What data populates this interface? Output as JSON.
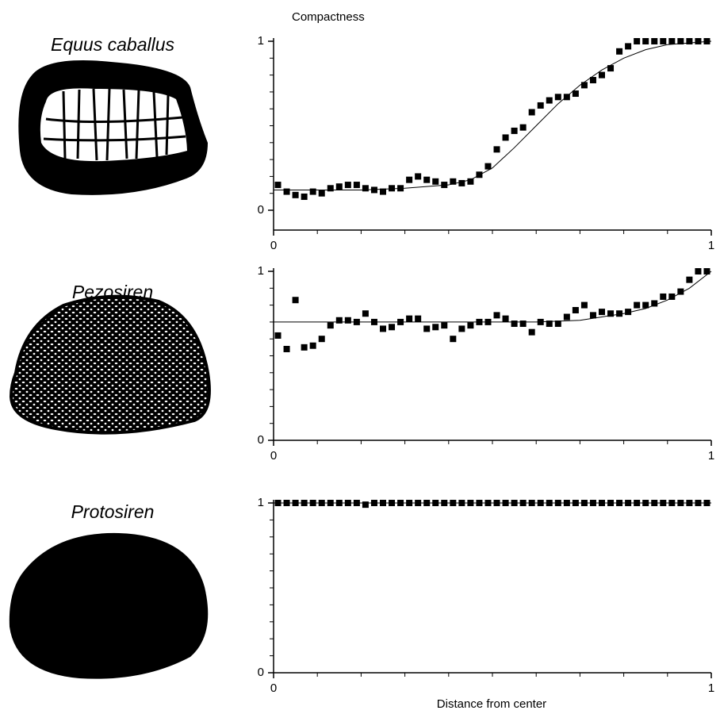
{
  "chart_data": [
    {
      "type": "scatter",
      "title": "Equus caballus",
      "ylabel": "Compactness",
      "x": [
        0.01,
        0.03,
        0.05,
        0.07,
        0.09,
        0.11,
        0.13,
        0.15,
        0.17,
        0.19,
        0.21,
        0.23,
        0.25,
        0.27,
        0.29,
        0.31,
        0.33,
        0.35,
        0.37,
        0.39,
        0.41,
        0.43,
        0.45,
        0.47,
        0.49,
        0.51,
        0.53,
        0.55,
        0.57,
        0.59,
        0.61,
        0.63,
        0.65,
        0.67,
        0.69,
        0.71,
        0.73,
        0.75,
        0.77,
        0.79,
        0.81,
        0.83,
        0.85,
        0.87,
        0.89,
        0.91,
        0.93,
        0.95,
        0.97,
        0.99
      ],
      "values": [
        0.15,
        0.11,
        0.09,
        0.08,
        0.11,
        0.1,
        0.13,
        0.14,
        0.15,
        0.15,
        0.13,
        0.12,
        0.11,
        0.13,
        0.13,
        0.18,
        0.2,
        0.18,
        0.17,
        0.15,
        0.17,
        0.16,
        0.17,
        0.21,
        0.26,
        0.36,
        0.43,
        0.47,
        0.49,
        0.58,
        0.62,
        0.65,
        0.67,
        0.67,
        0.69,
        0.74,
        0.77,
        0.8,
        0.84,
        0.94,
        0.97,
        1,
        1,
        1,
        1,
        1,
        1,
        1,
        1,
        1
      ],
      "curve": {
        "x": [
          0,
          0.1,
          0.2,
          0.3,
          0.35,
          0.4,
          0.45,
          0.5,
          0.55,
          0.6,
          0.65,
          0.7,
          0.75,
          0.8,
          0.85,
          0.9,
          0.95,
          1
        ],
        "values": [
          0.12,
          0.12,
          0.12,
          0.13,
          0.14,
          0.15,
          0.18,
          0.25,
          0.37,
          0.5,
          0.63,
          0.74,
          0.83,
          0.9,
          0.95,
          0.98,
          0.99,
          1
        ]
      },
      "xlim": [
        0,
        1
      ],
      "ylim": [
        0,
        1
      ],
      "xticks": [
        0,
        1
      ],
      "yticks": [
        0,
        1
      ],
      "color": "#000000"
    },
    {
      "type": "scatter",
      "title": "Pezosiren",
      "x": [
        0.01,
        0.03,
        0.05,
        0.07,
        0.09,
        0.11,
        0.13,
        0.15,
        0.17,
        0.19,
        0.21,
        0.23,
        0.25,
        0.27,
        0.29,
        0.31,
        0.33,
        0.35,
        0.37,
        0.39,
        0.41,
        0.43,
        0.45,
        0.47,
        0.49,
        0.51,
        0.53,
        0.55,
        0.57,
        0.59,
        0.61,
        0.63,
        0.65,
        0.67,
        0.69,
        0.71,
        0.73,
        0.75,
        0.77,
        0.79,
        0.81,
        0.83,
        0.85,
        0.87,
        0.89,
        0.91,
        0.93,
        0.95,
        0.97,
        0.99
      ],
      "values": [
        0.62,
        0.54,
        0.83,
        0.55,
        0.56,
        0.6,
        0.68,
        0.71,
        0.71,
        0.7,
        0.75,
        0.7,
        0.66,
        0.67,
        0.7,
        0.72,
        0.72,
        0.66,
        0.67,
        0.68,
        0.6,
        0.66,
        0.68,
        0.7,
        0.7,
        0.74,
        0.72,
        0.69,
        0.69,
        0.64,
        0.7,
        0.69,
        0.69,
        0.73,
        0.77,
        0.8,
        0.74,
        0.76,
        0.75,
        0.75,
        0.76,
        0.8,
        0.8,
        0.81,
        0.85,
        0.85,
        0.88,
        0.95,
        1,
        1
      ],
      "curve": {
        "x": [
          0,
          0.5,
          0.6,
          0.7,
          0.75,
          0.8,
          0.85,
          0.9,
          0.95,
          1
        ],
        "values": [
          0.7,
          0.7,
          0.7,
          0.71,
          0.73,
          0.75,
          0.78,
          0.83,
          0.9,
          1
        ]
      },
      "xlim": [
        0,
        1
      ],
      "ylim": [
        0,
        1
      ],
      "xticks": [
        0,
        1
      ],
      "yticks": [
        0,
        1
      ],
      "color": "#000000"
    },
    {
      "type": "scatter",
      "title": "Protosiren",
      "xlabel": "Distance from center",
      "x": [
        0.01,
        0.03,
        0.05,
        0.07,
        0.09,
        0.11,
        0.13,
        0.15,
        0.17,
        0.19,
        0.21,
        0.23,
        0.25,
        0.27,
        0.29,
        0.31,
        0.33,
        0.35,
        0.37,
        0.39,
        0.41,
        0.43,
        0.45,
        0.47,
        0.49,
        0.51,
        0.53,
        0.55,
        0.57,
        0.59,
        0.61,
        0.63,
        0.65,
        0.67,
        0.69,
        0.71,
        0.73,
        0.75,
        0.77,
        0.79,
        0.81,
        0.83,
        0.85,
        0.87,
        0.89,
        0.91,
        0.93,
        0.95,
        0.97,
        0.99
      ],
      "values": [
        1,
        1,
        1,
        1,
        1,
        1,
        1,
        1,
        1,
        1,
        0.99,
        1,
        1,
        1,
        1,
        1,
        1,
        1,
        1,
        1,
        1,
        1,
        1,
        1,
        1,
        1,
        1,
        1,
        1,
        1,
        1,
        1,
        1,
        1,
        1,
        1,
        1,
        1,
        1,
        1,
        1,
        1,
        1,
        1,
        1,
        1,
        1,
        1,
        1,
        1
      ],
      "curve": {
        "x": [
          0,
          1
        ],
        "values": [
          1,
          1
        ]
      },
      "xlim": [
        0,
        1
      ],
      "ylim": [
        0,
        1
      ],
      "xticks": [
        0,
        1
      ],
      "yticks": [
        0,
        1
      ],
      "color": "#000000"
    }
  ]
}
